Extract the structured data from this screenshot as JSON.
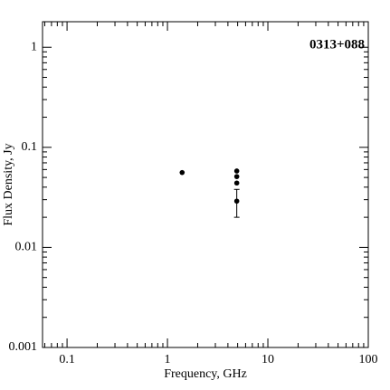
{
  "chart_data": {
    "type": "scatter",
    "annotation": "0313+088",
    "xlabel": "Frequency, GHz",
    "ylabel": "Flux Density, Jy",
    "xscale": "log",
    "yscale": "log",
    "xlim": [
      0.057,
      100
    ],
    "ylim": [
      0.001,
      1.8
    ],
    "xticks": [
      0.1,
      1,
      10,
      100
    ],
    "yticks": [
      0.001,
      0.01,
      0.1,
      1
    ],
    "series": [
      {
        "color": "#000000",
        "x": [
          1.4,
          4.9,
          4.9,
          4.9,
          4.9
        ],
        "values": [
          0.056,
          0.058,
          0.051,
          0.044,
          0.029
        ],
        "errors": [
          null,
          null,
          null,
          null,
          0.009
        ]
      }
    ]
  }
}
